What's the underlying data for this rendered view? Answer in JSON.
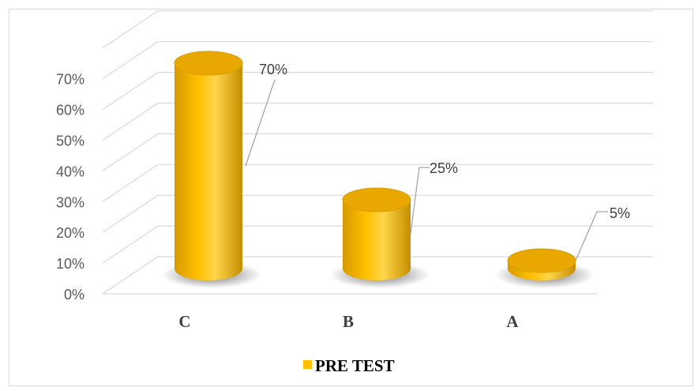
{
  "chart_data": {
    "type": "bar",
    "bar_shape": "3d-cylinder",
    "categories": [
      "C",
      "B",
      "A"
    ],
    "series": [
      {
        "name": "PRE TEST",
        "values": [
          70,
          25,
          5
        ],
        "color": "#FFC000"
      }
    ],
    "data_labels": [
      "70%",
      "25%",
      "5%"
    ],
    "y_ticks": [
      "0%",
      "10%",
      "20%",
      "30%",
      "40%",
      "50%",
      "60%",
      "70%"
    ],
    "ylim": [
      0,
      70
    ],
    "grid": true,
    "legend_position": "bottom"
  },
  "colors": {
    "bar_light": "#FFD54A",
    "bar_main": "#FFC000",
    "bar_dark": "#B98600",
    "bar_top": "#E8A800",
    "gridline": "#d9d9d9",
    "leader": "#a6a6a6"
  }
}
